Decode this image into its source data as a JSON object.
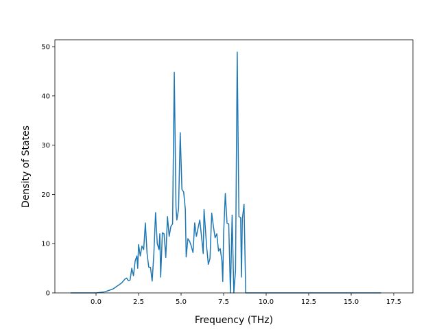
{
  "chart_data": {
    "type": "line",
    "x_label": "Frequency (THz)",
    "y_label": "Density of States",
    "x": [
      -1.5,
      0,
      0.5,
      1.0,
      1.5,
      1.7,
      1.8,
      1.9,
      2.0,
      2.1,
      2.2,
      2.3,
      2.4,
      2.45,
      2.5,
      2.6,
      2.7,
      2.8,
      2.9,
      3.0,
      3.1,
      3.2,
      3.3,
      3.4,
      3.5,
      3.6,
      3.7,
      3.75,
      3.8,
      3.9,
      4.0,
      4.1,
      4.2,
      4.3,
      4.4,
      4.5,
      4.6,
      4.7,
      4.75,
      4.85,
      4.95,
      5.05,
      5.15,
      5.25,
      5.3,
      5.4,
      5.5,
      5.6,
      5.7,
      5.8,
      5.9,
      6.0,
      6.1,
      6.2,
      6.3,
      6.35,
      6.5,
      6.6,
      6.7,
      6.8,
      6.9,
      7.0,
      7.1,
      7.2,
      7.3,
      7.4,
      7.45,
      7.5,
      7.6,
      7.7,
      7.8,
      7.9,
      8.0,
      8.1,
      8.2,
      8.3,
      8.4,
      8.5,
      8.55,
      8.6,
      8.7,
      8.8,
      9.0,
      16.75
    ],
    "series": [
      {
        "color": "#1f77b4",
        "values": [
          0,
          0,
          0.2,
          0.8,
          2,
          2.8,
          3,
          2.5,
          2.6,
          5,
          3.5,
          6.5,
          7.5,
          5,
          9.8,
          7.5,
          9.5,
          8.8,
          14.2,
          8,
          5.2,
          5.2,
          2.4,
          8,
          16.3,
          10,
          8.8,
          12,
          3.2,
          12.2,
          12,
          7.2,
          15.5,
          11.5,
          13.5,
          14,
          44.8,
          17.5,
          14.8,
          17,
          32.5,
          21,
          20.5,
          17,
          7.3,
          11,
          10.5,
          9.5,
          8.2,
          14.2,
          11.5,
          13.2,
          14.8,
          11.5,
          8,
          16.9,
          9.5,
          5.8,
          7,
          16.2,
          13.5,
          11.2,
          12,
          8.5,
          9,
          6.5,
          2.3,
          12,
          20.2,
          14.2,
          14,
          0,
          15.8,
          0,
          4.5,
          48.9,
          15.5,
          15.3,
          3.2,
          15,
          18,
          0,
          0,
          0
        ]
      }
    ],
    "xlim": [
      -2.42,
      18.63
    ],
    "ylim": [
      0,
      51.4
    ],
    "xticks": [
      {
        "value": 0,
        "label": "0.0"
      },
      {
        "value": 2.5,
        "label": "2.5"
      },
      {
        "value": 5,
        "label": "5.0"
      },
      {
        "value": 7.5,
        "label": "7.5"
      },
      {
        "value": 10,
        "label": "10.0"
      },
      {
        "value": 12.5,
        "label": "12.5"
      },
      {
        "value": 15,
        "label": "15.0"
      },
      {
        "value": 17.5,
        "label": "17.5"
      }
    ],
    "yticks": [
      0,
      10,
      20,
      30,
      40,
      50
    ]
  }
}
